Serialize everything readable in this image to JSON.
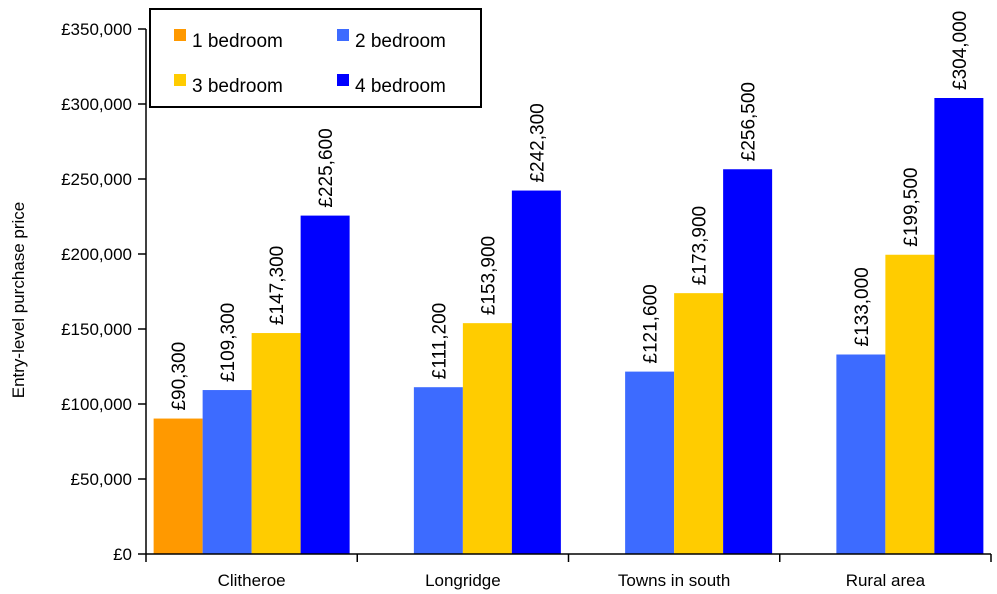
{
  "chart_data": {
    "type": "bar",
    "title": "",
    "xlabel": "",
    "ylabel": "Entry-level purchase price",
    "categories": [
      "Clitheroe",
      "Longridge",
      "Towns in south",
      "Rural area"
    ],
    "series": [
      {
        "name": "1 bedroom",
        "color": "#ff9900",
        "values": [
          90300,
          null,
          null,
          null
        ],
        "labels": [
          "£90,300",
          "",
          "",
          ""
        ]
      },
      {
        "name": "2 bedroom",
        "color": "#3d6bff",
        "values": [
          109300,
          111200,
          121600,
          133000
        ],
        "labels": [
          "£109,300",
          "£111,200",
          "£121,600",
          "£133,000"
        ]
      },
      {
        "name": "3 bedroom",
        "color": "#ffcc00",
        "values": [
          147300,
          153900,
          173900,
          199500
        ],
        "labels": [
          "£147,300",
          "£153,900",
          "£173,900",
          "£199,500"
        ]
      },
      {
        "name": "4 bedroom",
        "color": "#0000ff",
        "values": [
          225600,
          242300,
          256500,
          304000
        ],
        "labels": [
          "£225,600",
          "£242,300",
          "£256,500",
          "£304,000"
        ]
      }
    ],
    "ylim": [
      0,
      350000
    ],
    "yticks": [
      0,
      50000,
      100000,
      150000,
      200000,
      250000,
      300000,
      350000
    ],
    "ytick_labels": [
      "£0",
      "£50,000",
      "£100,000",
      "£150,000",
      "£200,000",
      "£250,000",
      "£300,000",
      "£350,000"
    ],
    "grid": false,
    "legend_position": "top-left"
  }
}
